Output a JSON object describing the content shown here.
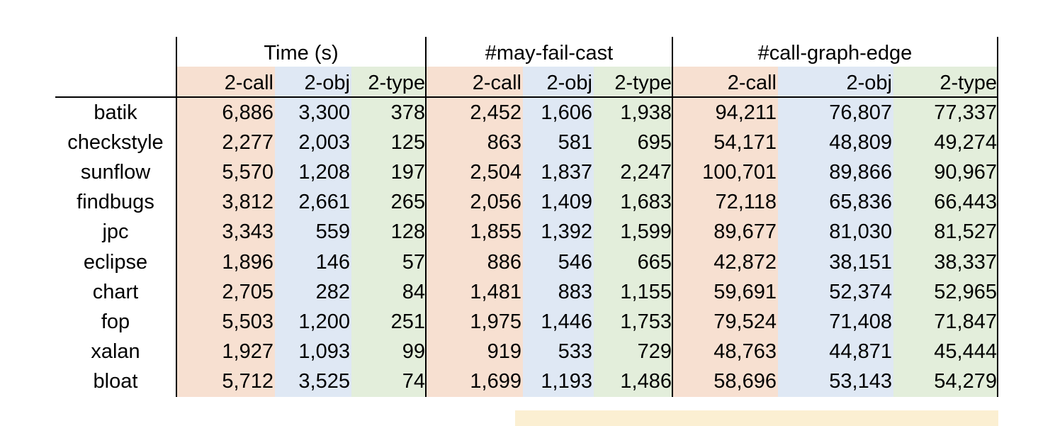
{
  "groups": [
    "Time (s)",
    "#may-fail-cast",
    "#call-graph-edge"
  ],
  "subheaders": [
    "2-call",
    "2-obj",
    "2-type"
  ],
  "rows": [
    {
      "name": "batik",
      "time": [
        "6,886",
        "3,300",
        "378"
      ],
      "cast": [
        "2,452",
        "1,606",
        "1,938"
      ],
      "edge": [
        "94,211",
        "76,807",
        "77,337"
      ]
    },
    {
      "name": "checkstyle",
      "time": [
        "2,277",
        "2,003",
        "125"
      ],
      "cast": [
        "863",
        "581",
        "695"
      ],
      "edge": [
        "54,171",
        "48,809",
        "49,274"
      ]
    },
    {
      "name": "sunflow",
      "time": [
        "5,570",
        "1,208",
        "197"
      ],
      "cast": [
        "2,504",
        "1,837",
        "2,247"
      ],
      "edge": [
        "100,701",
        "89,866",
        "90,967"
      ]
    },
    {
      "name": "findbugs",
      "time": [
        "3,812",
        "2,661",
        "265"
      ],
      "cast": [
        "2,056",
        "1,409",
        "1,683"
      ],
      "edge": [
        "72,118",
        "65,836",
        "66,443"
      ]
    },
    {
      "name": "jpc",
      "time": [
        "3,343",
        "559",
        "128"
      ],
      "cast": [
        "1,855",
        "1,392",
        "1,599"
      ],
      "edge": [
        "89,677",
        "81,030",
        "81,527"
      ]
    },
    {
      "name": "eclipse",
      "time": [
        "1,896",
        "146",
        "57"
      ],
      "cast": [
        "886",
        "546",
        "665"
      ],
      "edge": [
        "42,872",
        "38,151",
        "38,337"
      ]
    },
    {
      "name": "chart",
      "time": [
        "2,705",
        "282",
        "84"
      ],
      "cast": [
        "1,481",
        "883",
        "1,155"
      ],
      "edge": [
        "59,691",
        "52,374",
        "52,965"
      ]
    },
    {
      "name": "fop",
      "time": [
        "5,503",
        "1,200",
        "251"
      ],
      "cast": [
        "1,975",
        "1,446",
        "1,753"
      ],
      "edge": [
        "79,524",
        "71,408",
        "71,847"
      ]
    },
    {
      "name": "xalan",
      "time": [
        "1,927",
        "1,093",
        "99"
      ],
      "cast": [
        "919",
        "533",
        "729"
      ],
      "edge": [
        "48,763",
        "44,871",
        "45,444"
      ]
    },
    {
      "name": "bloat",
      "time": [
        "5,712",
        "3,525",
        "74"
      ],
      "cast": [
        "1,699",
        "1,193",
        "1,486"
      ],
      "edge": [
        "58,696",
        "53,143",
        "54,279"
      ]
    }
  ],
  "colors": {
    "call": "#f7e0d1",
    "obj": "#dfe8f4",
    "type": "#e3eedb",
    "note": "#fbefd2"
  }
}
